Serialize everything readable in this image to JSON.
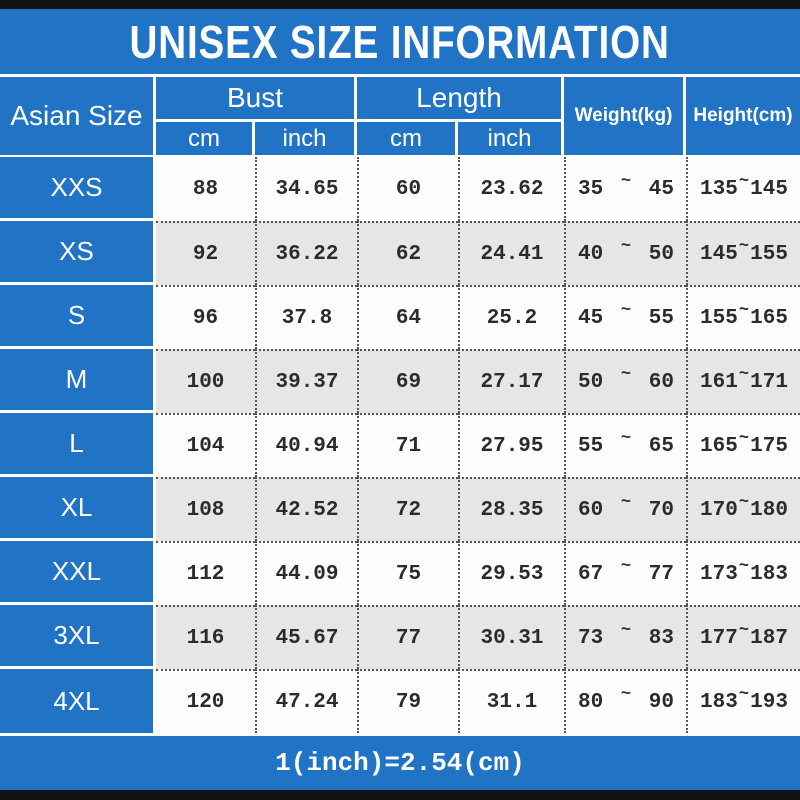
{
  "page": {
    "title": "UNISEX SIZE INFORMATION",
    "footer_note": "1(inch)=2.54(cm)"
  },
  "colors": {
    "accent_blue": "#2173c5",
    "alt_row_gray": "#e6e6e6",
    "bar_black": "#121212",
    "data_text": "#2b2b2b"
  },
  "table": {
    "tilde": "~",
    "headers": {
      "size_col": "Asian Size",
      "bust_group": "Bust",
      "length_group": "Length",
      "weight": "Weight(kg)",
      "height": "Height(cm)",
      "bust_cm": "cm",
      "bust_inch": "inch",
      "length_cm": "cm",
      "length_inch": "inch"
    },
    "rows": [
      {
        "size": "XXS",
        "bust_cm": "88",
        "bust_inch": "34.65",
        "length_cm": "60",
        "length_inch": "23.62",
        "weight_min": "35",
        "weight_max": "45",
        "height_min": "135",
        "height_max": "145"
      },
      {
        "size": "XS",
        "bust_cm": "92",
        "bust_inch": "36.22",
        "length_cm": "62",
        "length_inch": "24.41",
        "weight_min": "40",
        "weight_max": "50",
        "height_min": "145",
        "height_max": "155"
      },
      {
        "size": "S",
        "bust_cm": "96",
        "bust_inch": "37.8",
        "length_cm": "64",
        "length_inch": "25.2",
        "weight_min": "45",
        "weight_max": "55",
        "height_min": "155",
        "height_max": "165"
      },
      {
        "size": "M",
        "bust_cm": "100",
        "bust_inch": "39.37",
        "length_cm": "69",
        "length_inch": "27.17",
        "weight_min": "50",
        "weight_max": "60",
        "height_min": "161",
        "height_max": "171"
      },
      {
        "size": "L",
        "bust_cm": "104",
        "bust_inch": "40.94",
        "length_cm": "71",
        "length_inch": "27.95",
        "weight_min": "55",
        "weight_max": "65",
        "height_min": "165",
        "height_max": "175"
      },
      {
        "size": "XL",
        "bust_cm": "108",
        "bust_inch": "42.52",
        "length_cm": "72",
        "length_inch": "28.35",
        "weight_min": "60",
        "weight_max": "70",
        "height_min": "170",
        "height_max": "180"
      },
      {
        "size": "XXL",
        "bust_cm": "112",
        "bust_inch": "44.09",
        "length_cm": "75",
        "length_inch": "29.53",
        "weight_min": "67",
        "weight_max": "77",
        "height_min": "173",
        "height_max": "183"
      },
      {
        "size": "3XL",
        "bust_cm": "116",
        "bust_inch": "45.67",
        "length_cm": "77",
        "length_inch": "30.31",
        "weight_min": "73",
        "weight_max": "83",
        "height_min": "177",
        "height_max": "187"
      },
      {
        "size": "4XL",
        "bust_cm": "120",
        "bust_inch": "47.24",
        "length_cm": "79",
        "length_inch": "31.1",
        "weight_min": "80",
        "weight_max": "90",
        "height_min": "183",
        "height_max": "193"
      }
    ]
  },
  "chart_data": {
    "type": "table",
    "title": "UNISEX SIZE INFORMATION",
    "columns": [
      "Asian Size",
      "Bust cm",
      "Bust inch",
      "Length cm",
      "Length inch",
      "Weight(kg)",
      "Height(cm)"
    ],
    "rows": [
      [
        "XXS",
        88,
        34.65,
        60,
        23.62,
        "35~45",
        "135~145"
      ],
      [
        "XS",
        92,
        36.22,
        62,
        24.41,
        "40~50",
        "145~155"
      ],
      [
        "S",
        96,
        37.8,
        64,
        25.2,
        "45~55",
        "155~165"
      ],
      [
        "M",
        100,
        39.37,
        69,
        27.17,
        "50~60",
        "161~171"
      ],
      [
        "L",
        104,
        40.94,
        71,
        27.95,
        "55~65",
        "165~175"
      ],
      [
        "XL",
        108,
        42.52,
        72,
        28.35,
        "60~70",
        "170~180"
      ],
      [
        "XXL",
        112,
        44.09,
        75,
        29.53,
        "67~77",
        "173~183"
      ],
      [
        "3XL",
        116,
        45.67,
        77,
        30.31,
        "73~83",
        "177~187"
      ],
      [
        "4XL",
        120,
        47.24,
        79,
        31.1,
        "80~90",
        "183~193"
      ]
    ],
    "note": "1(inch)=2.54(cm)"
  }
}
